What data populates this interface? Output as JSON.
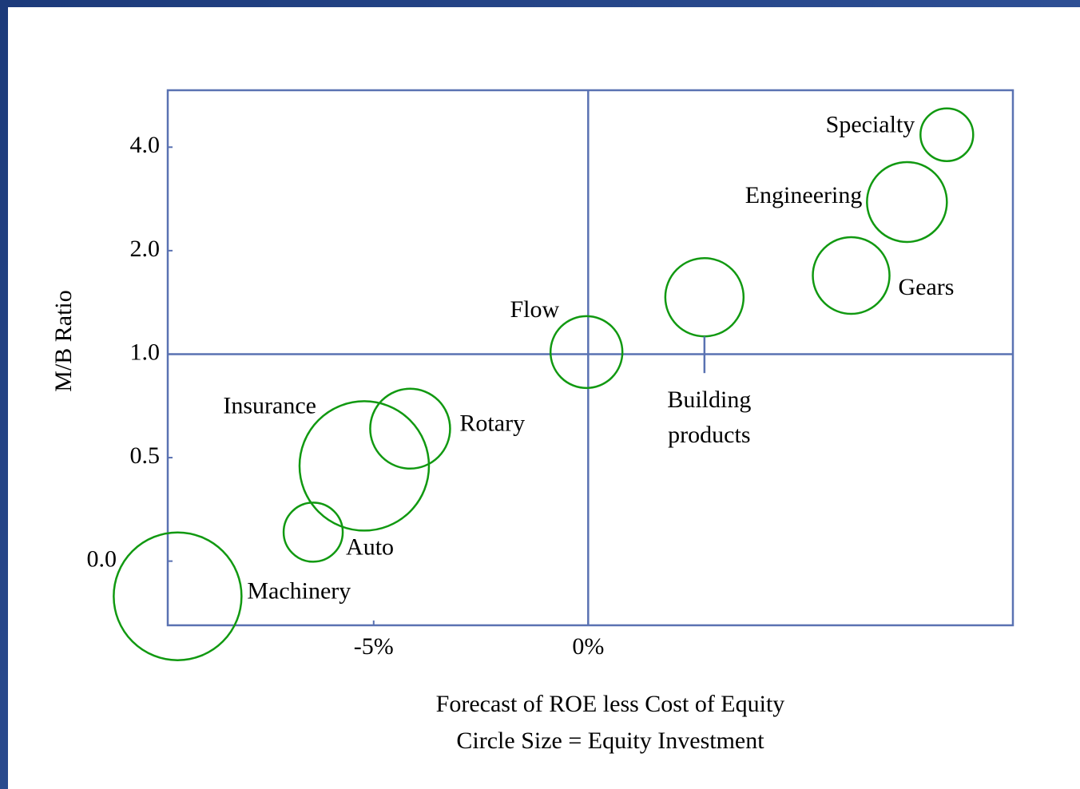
{
  "chart_data": {
    "type": "bubble",
    "xlabel": "Forecast of ROE less Cost of Equity",
    "subtitle": "Circle Size = Equity Investment",
    "ylabel": "M/B Ratio",
    "categories": [
      "Specialty",
      "Engineering",
      "Gears",
      "Building products",
      "Flow",
      "Rotary",
      "Insurance",
      "Auto",
      "Machinery"
    ],
    "x": [
      8.36,
      7.43,
      6.13,
      2.71,
      -0.04,
      -4.15,
      -5.22,
      -6.41,
      -9.57
    ],
    "values": [
      4.24,
      2.94,
      1.76,
      1.55,
      1.02,
      0.64,
      0.46,
      0.14,
      -0.17
    ],
    "sizes": [
      33,
      50,
      48,
      49,
      45,
      50,
      81,
      37,
      80
    ],
    "color": "#119911",
    "xlim": [
      -9.8,
      9.9
    ],
    "xticks": [
      {
        "value": -5,
        "label": "-5%"
      },
      {
        "value": 0,
        "label": "0%"
      }
    ],
    "ylim": [
      -0.31,
      5.1
    ],
    "yticks": [
      {
        "value": 0,
        "label": "0.0"
      },
      0.5,
      {
        "value": 1,
        "label": "1.0"
      },
      {
        "value": 2,
        "label": "2.0"
      },
      {
        "value": 4,
        "label": "4.0"
      }
    ],
    "yscale": "tick-spaced",
    "divider": {
      "x": 0,
      "y": 1
    }
  }
}
